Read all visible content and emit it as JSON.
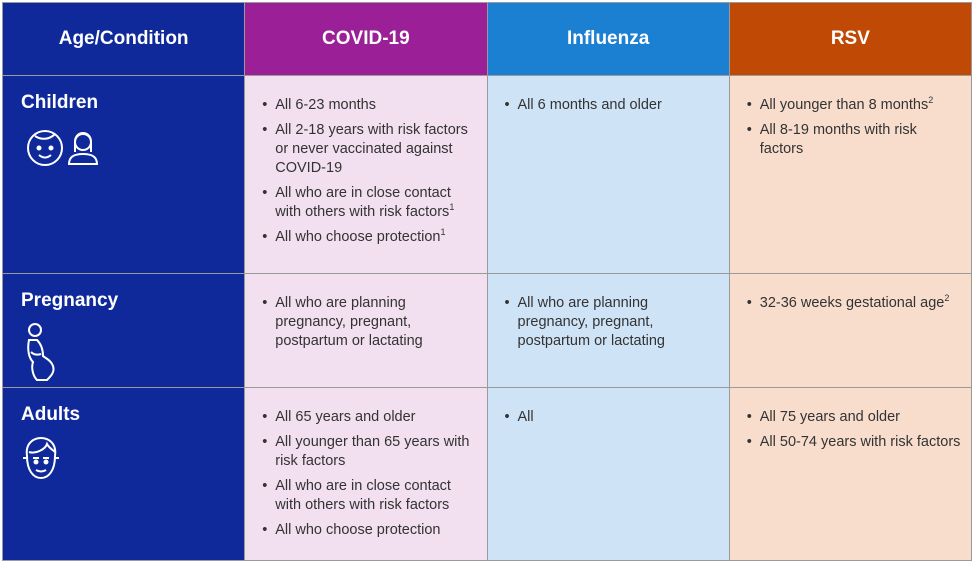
{
  "table": {
    "header": [
      "Age/Condition",
      "COVID-19",
      "Influenza",
      "RSV"
    ],
    "rows": [
      {
        "label": "Children",
        "cells": [
          [
            {
              "text": "All 6-23 months"
            },
            {
              "text": "All 2-18 years with risk factors or never vaccinated against COVID-19"
            },
            {
              "text": "All who are in close contact with others with risk factors",
              "sup": "1"
            },
            {
              "text": "All who choose protection",
              "sup": "1"
            }
          ],
          [
            {
              "text": "All 6 months and older"
            }
          ],
          [
            {
              "text": "All younger than 8 months",
              "sup": "2"
            },
            {
              "text": "All 8-19 months with risk factors"
            }
          ]
        ]
      },
      {
        "label": "Pregnancy",
        "cells": [
          [
            {
              "text": "All who are planning pregnancy, pregnant, postpartum or lactating"
            }
          ],
          [
            {
              "text": "All who are planning pregnancy, pregnant, postpartum or lactating"
            }
          ],
          [
            {
              "text": "32-36 weeks gestational age",
              "sup": "2"
            }
          ]
        ]
      },
      {
        "label": "Adults",
        "cells": [
          [
            {
              "text": "All 65 years and older"
            },
            {
              "text": "All younger than 65 years with risk factors"
            },
            {
              "text": "All who are in close contact with others with risk factors"
            },
            {
              "text": "All who choose protection"
            }
          ],
          [
            {
              "text": "All"
            }
          ],
          [
            {
              "text": "All 75 years and older"
            },
            {
              "text": "All 50-74 years with risk factors"
            }
          ]
        ]
      }
    ]
  }
}
